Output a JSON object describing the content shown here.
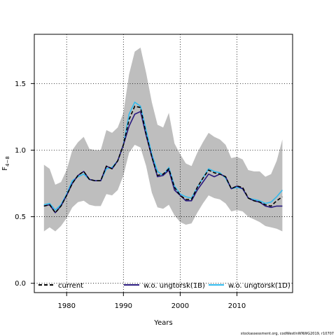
{
  "chart_data": {
    "type": "line",
    "xlabel": "Years",
    "ylabel": "F",
    "ylabel_sub": "4−8",
    "xlim": [
      1974.3,
      2019.8
    ],
    "ylim": [
      -0.07,
      1.87
    ],
    "x_ticks": [
      1980,
      1990,
      2000,
      2010
    ],
    "x_tick_labels": [
      "1980",
      "1990",
      "2000",
      "2010"
    ],
    "y_ticks": [
      0.0,
      0.5,
      1.0,
      1.5
    ],
    "y_tick_labels": [
      "0.0",
      "0.5",
      "1.0",
      "1.5"
    ],
    "grid": "dotted",
    "legend_position": "bottom",
    "footer": "stockassessment.org, codWestInWNWG2019, r10707",
    "x": [
      1976,
      1977,
      1978,
      1979,
      1980,
      1981,
      1982,
      1983,
      1984,
      1985,
      1986,
      1987,
      1988,
      1989,
      1990,
      1991,
      1992,
      1993,
      1994,
      1995,
      1996,
      1997,
      1998,
      1999,
      2000,
      2001,
      2002,
      2003,
      2004,
      2005,
      2006,
      2007,
      2008,
      2009,
      2010,
      2011,
      2012,
      2013,
      2014,
      2015,
      2016,
      2017,
      2018
    ],
    "band": {
      "name": "confidence interval",
      "color": "#bebebe",
      "upper": [
        0.89,
        0.86,
        0.74,
        0.76,
        0.85,
        1.0,
        1.06,
        1.1,
        1.01,
        1.0,
        1.0,
        1.15,
        1.13,
        1.17,
        1.28,
        1.57,
        1.74,
        1.77,
        1.58,
        1.36,
        1.19,
        1.17,
        1.28,
        1.05,
        0.97,
        0.9,
        0.88,
        0.98,
        1.06,
        1.13,
        1.1,
        1.08,
        1.04,
        0.94,
        0.95,
        0.93,
        0.85,
        0.84,
        0.84,
        0.8,
        0.82,
        0.92,
        1.08
      ],
      "lower": [
        0.39,
        0.42,
        0.39,
        0.43,
        0.49,
        0.57,
        0.61,
        0.62,
        0.59,
        0.58,
        0.58,
        0.67,
        0.66,
        0.7,
        0.81,
        0.98,
        1.04,
        1.02,
        0.88,
        0.68,
        0.57,
        0.56,
        0.59,
        0.51,
        0.46,
        0.44,
        0.45,
        0.53,
        0.6,
        0.66,
        0.64,
        0.63,
        0.6,
        0.54,
        0.55,
        0.54,
        0.5,
        0.48,
        0.46,
        0.43,
        0.42,
        0.41,
        0.39
      ]
    },
    "series": [
      {
        "name": "w.o. ungtorsk(1D)",
        "color": "#33bbee",
        "width": 1.6,
        "dash": "",
        "values": [
          0.59,
          0.6,
          0.55,
          0.59,
          0.67,
          0.77,
          0.8,
          0.82,
          0.78,
          0.77,
          0.77,
          0.86,
          0.87,
          0.92,
          1.04,
          1.27,
          1.36,
          1.33,
          1.15,
          0.97,
          0.84,
          0.81,
          0.87,
          0.73,
          0.67,
          0.65,
          0.64,
          0.72,
          0.79,
          0.86,
          0.84,
          0.83,
          0.79,
          0.71,
          0.72,
          0.71,
          0.64,
          0.63,
          0.62,
          0.6,
          0.61,
          0.65,
          0.7
        ]
      },
      {
        "name": "w.o. ungtorsk(1B)",
        "color": "#2a1a80",
        "width": 1.6,
        "dash": "",
        "values": [
          0.58,
          0.59,
          0.53,
          0.58,
          0.66,
          0.75,
          0.81,
          0.84,
          0.78,
          0.77,
          0.77,
          0.88,
          0.86,
          0.92,
          1.04,
          1.18,
          1.27,
          1.29,
          1.11,
          0.95,
          0.8,
          0.81,
          0.85,
          0.7,
          0.66,
          0.62,
          0.62,
          0.7,
          0.76,
          0.82,
          0.8,
          0.82,
          0.8,
          0.71,
          0.73,
          0.71,
          0.64,
          0.62,
          0.61,
          0.58,
          0.57,
          0.58,
          0.58
        ]
      },
      {
        "name": "current",
        "color": "#000000",
        "width": 1.6,
        "dash": "5,3",
        "values": [
          0.58,
          0.59,
          0.53,
          0.58,
          0.66,
          0.75,
          0.81,
          0.84,
          0.78,
          0.77,
          0.77,
          0.88,
          0.86,
          0.92,
          1.04,
          1.23,
          1.33,
          1.32,
          1.12,
          0.95,
          0.81,
          0.82,
          0.86,
          0.72,
          0.66,
          0.63,
          0.63,
          0.72,
          0.79,
          0.85,
          0.83,
          0.82,
          0.8,
          0.71,
          0.73,
          0.72,
          0.64,
          0.62,
          0.61,
          0.59,
          0.58,
          0.62,
          0.65
        ]
      }
    ],
    "legend": [
      {
        "label": "current",
        "color": "#000000",
        "dash": "5,3"
      },
      {
        "label": "w.o. ungtorsk(1B)",
        "color": "#2a1a80",
        "dash": ""
      },
      {
        "label": "w.o. ungtorsk(1D)",
        "color": "#33bbee",
        "dash": ""
      }
    ]
  }
}
